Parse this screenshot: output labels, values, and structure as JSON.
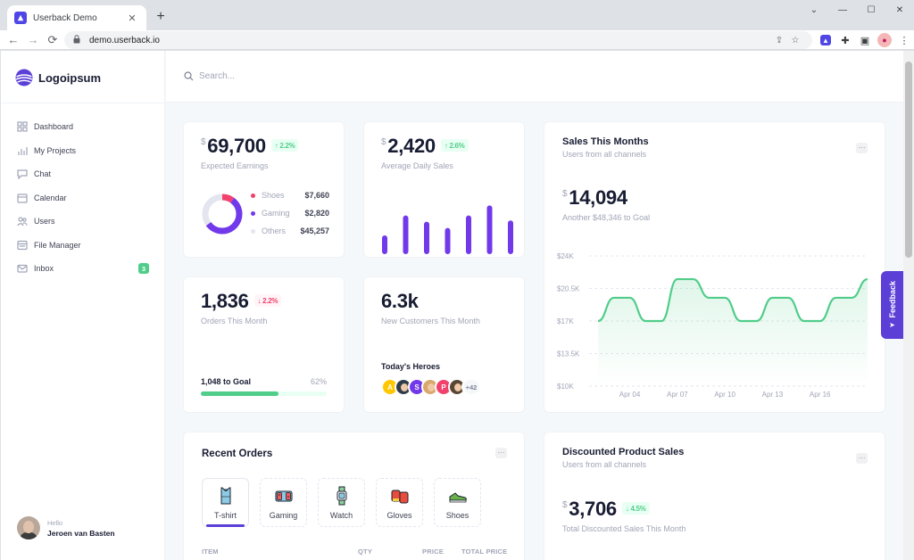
{
  "browser": {
    "tab_title": "Userback Demo",
    "url": "demo.userback.io",
    "window_controls": [
      "⌄",
      "—",
      "☐",
      "✕"
    ]
  },
  "brand": {
    "name": "Logoipsum"
  },
  "search": {
    "placeholder": "Search..."
  },
  "sidebar": {
    "items": [
      {
        "label": "Dashboard",
        "icon": "grid-icon"
      },
      {
        "label": "My Projects",
        "icon": "bar-chart-icon"
      },
      {
        "label": "Chat",
        "icon": "chat-icon"
      },
      {
        "label": "Calendar",
        "icon": "calendar-icon"
      },
      {
        "label": "Users",
        "icon": "users-icon"
      },
      {
        "label": "File Manager",
        "icon": "folder-icon"
      },
      {
        "label": "Inbox",
        "icon": "inbox-icon",
        "badge": "3"
      }
    ],
    "user": {
      "greeting": "Hello",
      "name": "Jeroen van Basten"
    }
  },
  "earnings": {
    "currency": "$",
    "value": "69,700",
    "change": "↑ 2.2%",
    "label": "Expected Earnings",
    "breakdown": [
      {
        "name": "Shoes",
        "value": "$7,660",
        "color": "#f1416c",
        "share": 0.1
      },
      {
        "name": "Gaming",
        "value": "$2,820",
        "color": "#7239ea",
        "share": 0.55
      },
      {
        "name": "Others",
        "value": "$45,257",
        "color": "#e4e6ef",
        "share": 0.35
      }
    ]
  },
  "daily_sales": {
    "currency": "$",
    "value": "2,420",
    "change": "↑ 2.6%",
    "label": "Average Daily Sales",
    "bars": [
      30,
      62,
      52,
      42,
      62,
      78,
      54
    ],
    "bar_color": "#7239ea"
  },
  "orders": {
    "value": "1,836",
    "change": "↓ 2.2%",
    "label": "Orders This Month",
    "goal_text": "1,048 to Goal",
    "goal_percent": "62%",
    "progress": 0.62
  },
  "customers": {
    "value": "6.3k",
    "label": "New Customers This Month",
    "heroes_title": "Today's Heroes",
    "heroes": [
      {
        "initial": "A",
        "color": "#ffc700"
      },
      {
        "initial": "",
        "color": "#2f3d4a"
      },
      {
        "initial": "S",
        "color": "#7239ea"
      },
      {
        "initial": "",
        "color": "#d9a86c"
      },
      {
        "initial": "P",
        "color": "#f1416c"
      },
      {
        "initial": "",
        "color": "#5a4634"
      }
    ],
    "more": "+42"
  },
  "sales_month": {
    "title": "Sales This Months",
    "subtitle": "Users from all channels",
    "currency": "$",
    "value": "14,094",
    "goal_text": "Another $48,346 to Goal",
    "more_label": "···"
  },
  "chart_data": {
    "type": "area",
    "title": "Sales This Months",
    "x": [
      "Apr 02",
      "Apr 03",
      "Apr 04",
      "Apr 05",
      "Apr 06",
      "Apr 07",
      "Apr 08",
      "Apr 09",
      "Apr 10",
      "Apr 11",
      "Apr 12",
      "Apr 13",
      "Apr 14",
      "Apr 15",
      "Apr 16",
      "Apr 17",
      "Apr 18",
      "Apr 19"
    ],
    "series": [
      {
        "name": "Sales",
        "values": [
          17000,
          19500,
          19500,
          17000,
          17000,
          21500,
          21500,
          19500,
          19500,
          17000,
          17000,
          19500,
          19500,
          17000,
          17000,
          19500,
          19500,
          21500
        ]
      }
    ],
    "xtick_labels": [
      "Apr 04",
      "Apr 07",
      "Apr 10",
      "Apr 13",
      "Apr 16"
    ],
    "ytick_labels": [
      "$24K",
      "$20.5K",
      "$17K",
      "$13.5K",
      "$10K"
    ],
    "ylim": [
      10000,
      24000
    ],
    "color": "#50cd89",
    "grid": true
  },
  "recent_orders": {
    "title": "Recent Orders",
    "more_label": "···",
    "tabs": [
      {
        "label": "T-shirt",
        "icon": "tshirt-icon",
        "active": true
      },
      {
        "label": "Gaming",
        "icon": "gamepad-icon",
        "active": false
      },
      {
        "label": "Watch",
        "icon": "watch-icon",
        "active": false
      },
      {
        "label": "Gloves",
        "icon": "gloves-icon",
        "active": false
      },
      {
        "label": "Shoes",
        "icon": "shoes-icon",
        "active": false
      }
    ],
    "columns": [
      "ITEM",
      "QTY",
      "PRICE",
      "TOTAL PRICE"
    ]
  },
  "discounted": {
    "title": "Discounted Product Sales",
    "subtitle": "Users from all channels",
    "currency": "$",
    "value": "3,706",
    "change": "↓ 4.5%",
    "label": "Total Discounted Sales This Month",
    "more_label": "···"
  },
  "feedback": {
    "label": "Feedback"
  }
}
